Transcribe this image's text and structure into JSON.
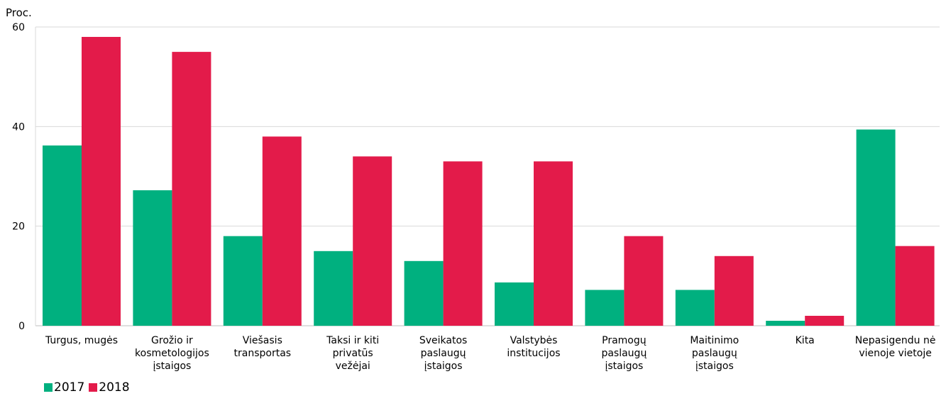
{
  "chart_data": {
    "type": "bar",
    "ylabel": "Proc.",
    "ylim": [
      0,
      60
    ],
    "yticks": [
      "0",
      "20",
      "40",
      "60"
    ],
    "grid": true,
    "legend_position": "bottom-left",
    "categories": [
      [
        "Turgus, mugės"
      ],
      [
        "Grožio ir",
        "kosmetologijos",
        "įstaigos"
      ],
      [
        "Viešasis",
        "transportas"
      ],
      [
        "Taksi ir kiti",
        "privatūs",
        "vežėjai"
      ],
      [
        "Sveikatos",
        "paslaugų",
        "įstaigos"
      ],
      [
        "Valstybės",
        "institucijos"
      ],
      [
        "Pramogų",
        "paslaugų",
        "įstaigos"
      ],
      [
        "Maitinimo",
        "paslaugų",
        "įstaigos"
      ],
      [
        "Kita"
      ],
      [
        "Nepasigendu nė",
        "vienoje vietoje"
      ]
    ],
    "series": [
      {
        "name": "2017",
        "color": "#00b07f",
        "values": [
          36.2,
          27.2,
          18,
          15,
          13,
          8.7,
          7.2,
          7.2,
          1,
          39.4
        ]
      },
      {
        "name": "2018",
        "color": "#e31b4a",
        "values": [
          58,
          55,
          38,
          34,
          33,
          33,
          18,
          14,
          2,
          16
        ]
      }
    ]
  }
}
